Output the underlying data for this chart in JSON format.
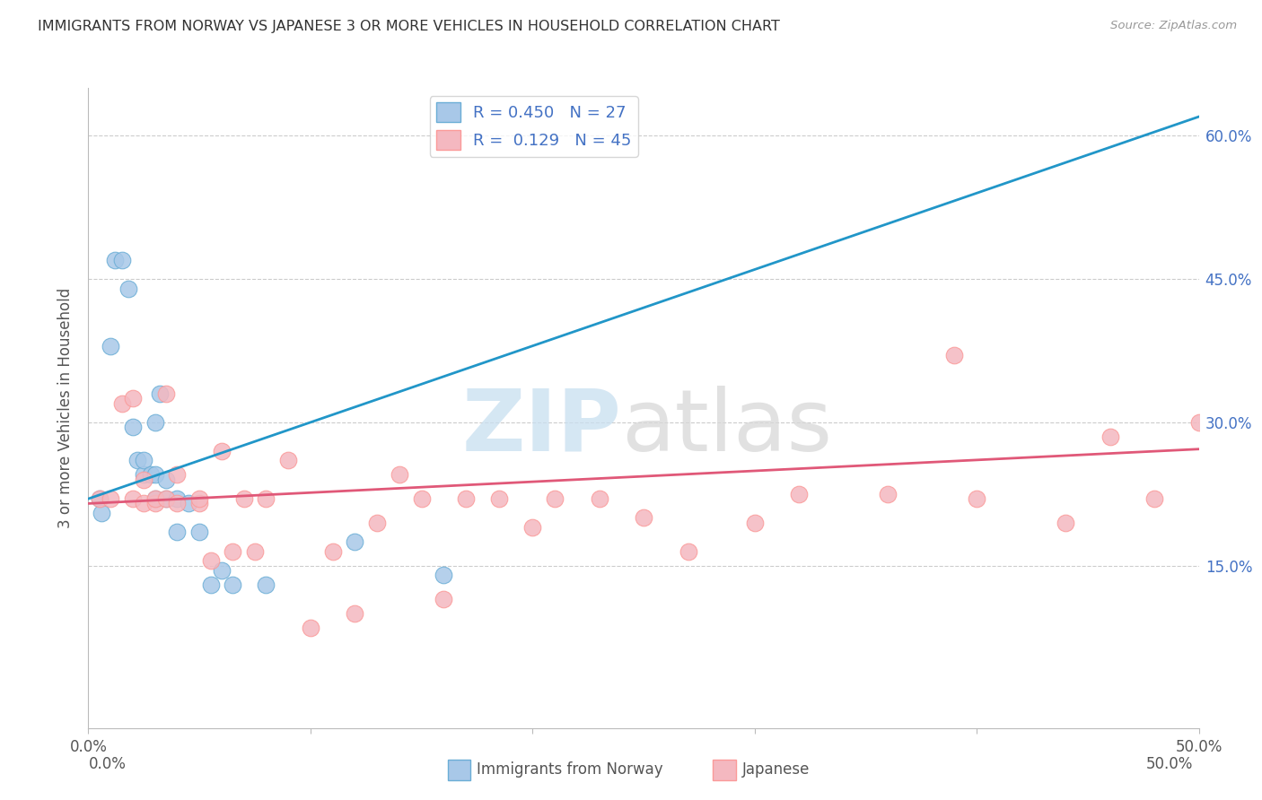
{
  "title": "IMMIGRANTS FROM NORWAY VS JAPANESE 3 OR MORE VEHICLES IN HOUSEHOLD CORRELATION CHART",
  "source": "Source: ZipAtlas.com",
  "ylabel": "3 or more Vehicles in Household",
  "xlim": [
    0.0,
    0.5
  ],
  "ylim": [
    -0.02,
    0.65
  ],
  "legend_norway_r": "R = 0.450",
  "legend_norway_n": "N = 27",
  "legend_japanese_r": "R =  0.129",
  "legend_japanese_n": "N = 45",
  "norway_color": "#a8c8e8",
  "norway_edge_color": "#6baed6",
  "japanese_color": "#f4b8c0",
  "japanese_edge_color": "#fb9a99",
  "norway_line_color": "#2196c8",
  "japanese_line_color": "#e05878",
  "norway_scatter_x": [
    0.005,
    0.006,
    0.01,
    0.012,
    0.015,
    0.018,
    0.02,
    0.022,
    0.025,
    0.025,
    0.028,
    0.03,
    0.03,
    0.03,
    0.032,
    0.035,
    0.035,
    0.04,
    0.04,
    0.045,
    0.05,
    0.055,
    0.06,
    0.065,
    0.08,
    0.12,
    0.16
  ],
  "norway_scatter_y": [
    0.22,
    0.205,
    0.38,
    0.47,
    0.47,
    0.44,
    0.295,
    0.26,
    0.245,
    0.26,
    0.245,
    0.3,
    0.245,
    0.22,
    0.33,
    0.22,
    0.24,
    0.185,
    0.22,
    0.215,
    0.185,
    0.13,
    0.145,
    0.13,
    0.13,
    0.175,
    0.14
  ],
  "japanese_scatter_x": [
    0.005,
    0.01,
    0.015,
    0.02,
    0.02,
    0.025,
    0.025,
    0.03,
    0.03,
    0.035,
    0.035,
    0.04,
    0.04,
    0.05,
    0.05,
    0.06,
    0.065,
    0.07,
    0.08,
    0.09,
    0.1,
    0.11,
    0.13,
    0.15,
    0.17,
    0.185,
    0.2,
    0.21,
    0.23,
    0.25,
    0.27,
    0.3,
    0.32,
    0.36,
    0.39,
    0.4,
    0.44,
    0.46,
    0.48,
    0.5,
    0.055,
    0.075,
    0.12,
    0.14,
    0.16
  ],
  "japanese_scatter_y": [
    0.22,
    0.22,
    0.32,
    0.325,
    0.22,
    0.215,
    0.24,
    0.215,
    0.22,
    0.33,
    0.22,
    0.215,
    0.245,
    0.215,
    0.22,
    0.27,
    0.165,
    0.22,
    0.22,
    0.26,
    0.085,
    0.165,
    0.195,
    0.22,
    0.22,
    0.22,
    0.19,
    0.22,
    0.22,
    0.2,
    0.165,
    0.195,
    0.225,
    0.225,
    0.37,
    0.22,
    0.195,
    0.285,
    0.22,
    0.3,
    0.155,
    0.165,
    0.1,
    0.245,
    0.115
  ],
  "norway_line_x": [
    0.0,
    0.5
  ],
  "norway_line_y": [
    0.22,
    0.62
  ],
  "japanese_line_x": [
    0.0,
    0.5
  ],
  "japanese_line_y": [
    0.215,
    0.272
  ],
  "ytick_vals": [
    0.0,
    0.15,
    0.3,
    0.45,
    0.6
  ],
  "ytick_labels": [
    "",
    "15.0%",
    "30.0%",
    "45.0%",
    "60.0%"
  ],
  "xtick_vals": [
    0.0,
    0.1,
    0.2,
    0.3,
    0.4,
    0.5
  ],
  "xtick_labels": [
    "0.0%",
    "",
    "",
    "",
    "",
    "50.0%"
  ]
}
